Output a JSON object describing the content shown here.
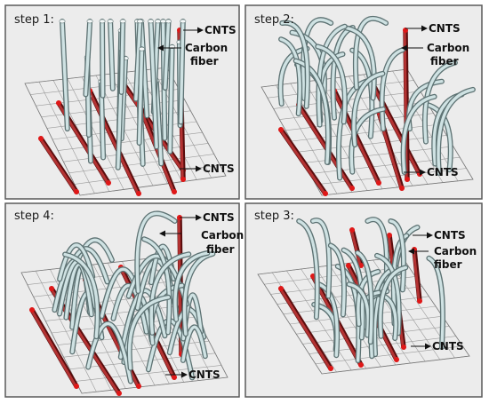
{
  "panels": [
    {
      "id": "p1",
      "step": "step 1:",
      "labels": {
        "cnts_top": "CNTS",
        "carbon1": "Carbon",
        "carbon2": "fiber",
        "cnts_bottom": "CNTS"
      }
    },
    {
      "id": "p2",
      "step": "step 2:",
      "labels": {
        "cnts_top": "CNTS",
        "carbon1": "Carbon",
        "carbon2": "fiber",
        "cnts_bottom": "CNTS"
      }
    },
    {
      "id": "p4",
      "step": "step 4:",
      "labels": {
        "cnts_top": "CNTS",
        "carbon1": "Carbon",
        "carbon2": "fiber",
        "cnts_bottom": "CNTS"
      }
    },
    {
      "id": "p3",
      "step": "step 3:",
      "labels": {
        "cnts_top": "CNTS",
        "carbon1": "Carbon",
        "carbon2": "fiber",
        "cnts_bottom": "CNTS"
      }
    }
  ],
  "colors": {
    "carbon_fiber": "#b8d0d2",
    "cnts": "#a01c1c",
    "cnts_tip": "#e01818",
    "panel_bg": "#ececec",
    "grid": "#9a9a9a"
  }
}
